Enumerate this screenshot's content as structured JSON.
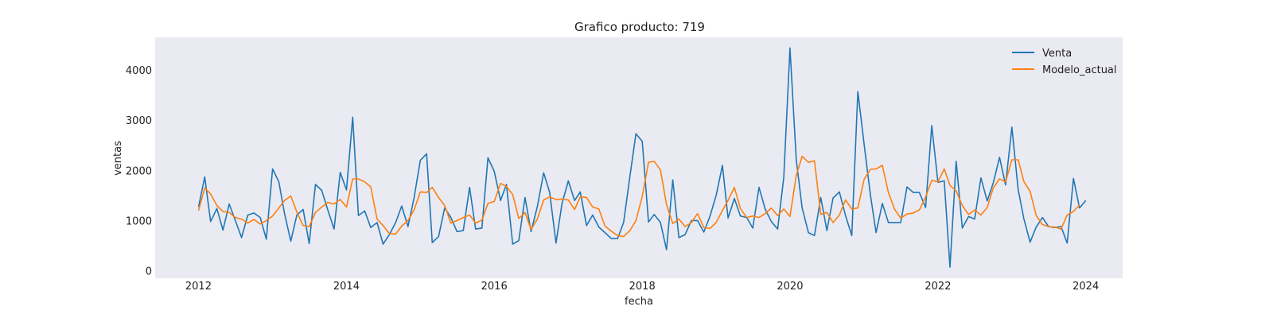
{
  "chart_data": {
    "type": "line",
    "title": "Grafico producto: 719",
    "xlabel": "fecha",
    "ylabel": "ventas",
    "xlim": [
      "2011-06-01",
      "2024-07-01"
    ],
    "ylim": [
      -150,
      4650
    ],
    "x_ticks": [
      "2012",
      "2014",
      "2016",
      "2018",
      "2020",
      "2022",
      "2024"
    ],
    "y_ticks": [
      0,
      1000,
      2000,
      3000,
      4000
    ],
    "grid": false,
    "legend_position": "top-right",
    "start_month": "2012-01",
    "series": [
      {
        "name": "Venta",
        "color": "#1f77b4",
        "values": [
          1270,
          1870,
          980,
          1240,
          810,
          1330,
          1000,
          660,
          1110,
          1150,
          1060,
          630,
          2030,
          1770,
          1140,
          590,
          1110,
          1220,
          540,
          1720,
          1600,
          1210,
          830,
          1960,
          1610,
          3060,
          1100,
          1190,
          860,
          960,
          530,
          720,
          960,
          1290,
          880,
          1450,
          2200,
          2330,
          560,
          680,
          1250,
          1060,
          780,
          800,
          1660,
          830,
          850,
          2250,
          1980,
          1400,
          1720,
          530,
          600,
          1460,
          780,
          1280,
          1950,
          1560,
          550,
          1340,
          1790,
          1400,
          1570,
          900,
          1110,
          870,
          760,
          640,
          640,
          960,
          1880,
          2730,
          2580,
          970,
          1120,
          960,
          420,
          1810,
          660,
          720,
          1000,
          1000,
          770,
          1080,
          1500,
          2100,
          1050,
          1440,
          1090,
          1060,
          850,
          1660,
          1220,
          980,
          830,
          1860,
          4440,
          2210,
          1250,
          760,
          700,
          1460,
          800,
          1450,
          1570,
          1100,
          700,
          3570,
          2520,
          1510,
          760,
          1340,
          960,
          960,
          960,
          1670,
          1560,
          1560,
          1260,
          2890,
          1760,
          1790,
          70,
          2180,
          850,
          1080,
          1030,
          1850,
          1390,
          1750,
          2260,
          1710,
          2860,
          1620,
          1040,
          570,
          870,
          1060,
          880,
          860,
          880,
          550,
          1840,
          1250,
          1400
        ]
      },
      {
        "name": "Modelo_actual",
        "color": "#ff7f0e",
        "values": [
          1200,
          1650,
          1530,
          1300,
          1180,
          1160,
          1060,
          1030,
          950,
          1020,
          930,
          1000,
          1090,
          1250,
          1400,
          1490,
          1170,
          900,
          880,
          1160,
          1270,
          1360,
          1330,
          1420,
          1270,
          1830,
          1830,
          1770,
          1670,
          1030,
          900,
          740,
          730,
          890,
          1000,
          1210,
          1570,
          1560,
          1660,
          1460,
          1300,
          950,
          1000,
          1060,
          1110,
          950,
          1010,
          1340,
          1380,
          1740,
          1680,
          1520,
          1040,
          1160,
          820,
          1030,
          1410,
          1470,
          1420,
          1430,
          1410,
          1220,
          1470,
          1460,
          1270,
          1230,
          890,
          790,
          700,
          680,
          800,
          1000,
          1480,
          2160,
          2180,
          2010,
          1320,
          940,
          1030,
          880,
          960,
          1140,
          860,
          840,
          960,
          1200,
          1400,
          1660,
          1240,
          1060,
          1090,
          1060,
          1140,
          1250,
          1100,
          1230,
          1080,
          1900,
          2280,
          2160,
          2190,
          1120,
          1160,
          960,
          1110,
          1410,
          1230,
          1250,
          1820,
          2020,
          2030,
          2100,
          1560,
          1220,
          1050,
          1130,
          1150,
          1210,
          1470,
          1800,
          1770,
          2030,
          1700,
          1590,
          1300,
          1120,
          1210,
          1110,
          1260,
          1650,
          1830,
          1770,
          2210,
          2210,
          1780,
          1580,
          1100,
          920,
          880,
          870,
          830,
          1110,
          1180,
          1310
        ]
      }
    ]
  }
}
